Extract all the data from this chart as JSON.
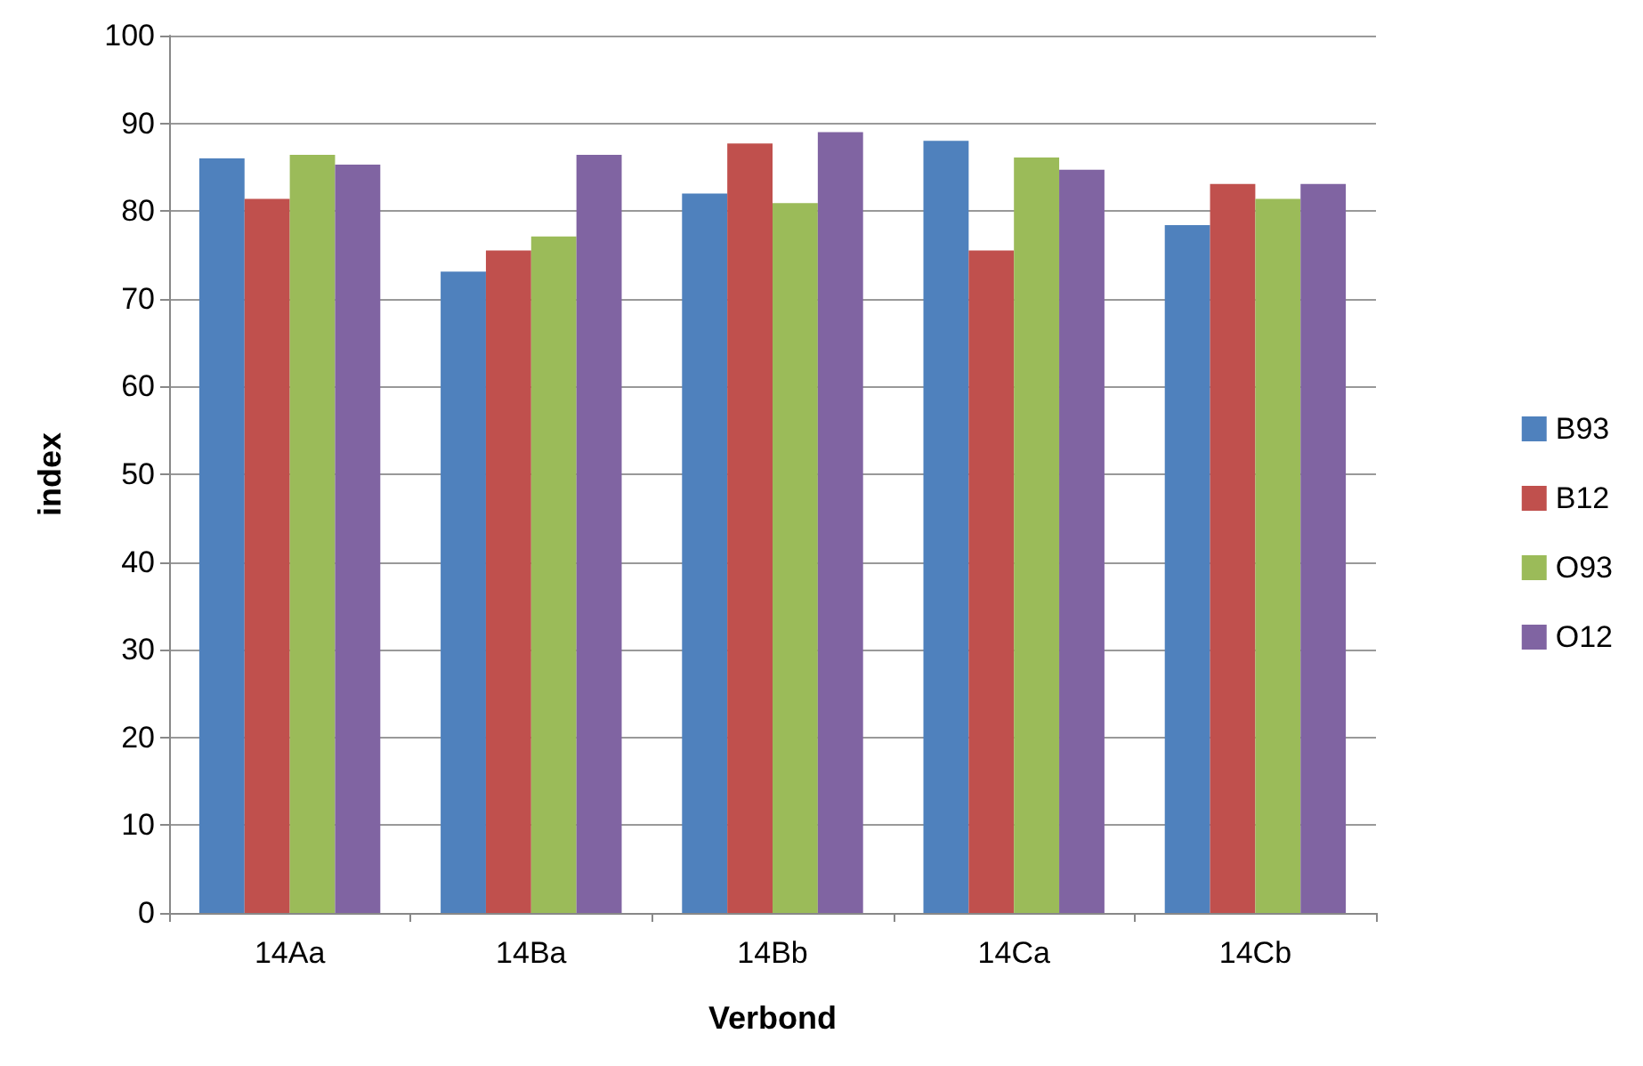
{
  "chart_data": {
    "type": "bar",
    "xlabel": "Verbond",
    "ylabel": "index",
    "categories": [
      "14Aa",
      "14Ba",
      "14Bb",
      "14Ca",
      "14Cb"
    ],
    "series": [
      {
        "name": "B93",
        "color": "#4f81bd",
        "values": [
          86.0,
          73.1,
          82.0,
          88.0,
          78.4
        ]
      },
      {
        "name": "B12",
        "color": "#c0504d",
        "values": [
          81.4,
          75.5,
          87.7,
          75.5,
          83.1
        ]
      },
      {
        "name": "O93",
        "color": "#9bbb59",
        "values": [
          86.4,
          77.1,
          80.9,
          86.1,
          81.4
        ]
      },
      {
        "name": "O12",
        "color": "#8064a2",
        "values": [
          85.3,
          86.4,
          89.0,
          84.7,
          83.1
        ]
      }
    ],
    "ylim": [
      0,
      100
    ],
    "yticks": [
      0,
      10,
      20,
      30,
      40,
      50,
      60,
      70,
      80,
      90,
      100
    ],
    "grid": "y",
    "legend": "right"
  }
}
